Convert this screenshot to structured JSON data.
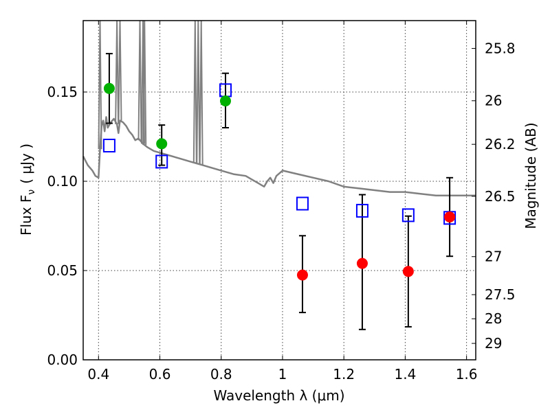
{
  "chart_data": {
    "type": "scatter",
    "xlabel": "Wavelength  λ (μm)",
    "ylabel": "Flux  F",
    "ylabel_sub": "ν",
    "ylabel_unit": "( μJy )",
    "y2label": "Magnitude (AB)",
    "xlim": [
      0.35,
      1.63
    ],
    "ylim": [
      0.0,
      0.19
    ],
    "grid": true,
    "x_ticks": [
      {
        "value": 0.4,
        "label": "0.4"
      },
      {
        "value": 0.6,
        "label": "0.6"
      },
      {
        "value": 0.8,
        "label": "0.8"
      },
      {
        "value": 1.0,
        "label": "1"
      },
      {
        "value": 1.2,
        "label": "1.2"
      },
      {
        "value": 1.4,
        "label": "1.4"
      },
      {
        "value": 1.6,
        "label": "1.6"
      }
    ],
    "y_ticks": [
      {
        "value": 0.0,
        "label": "0.00"
      },
      {
        "value": 0.05,
        "label": "0.05"
      },
      {
        "value": 0.1,
        "label": "0.10"
      },
      {
        "value": 0.15,
        "label": "0.15"
      }
    ],
    "y2_ticks": [
      {
        "label": "25.8",
        "flux": 0.1744
      },
      {
        "label": "26",
        "flux": 0.1451
      },
      {
        "label": "26.2",
        "flux": 0.1207
      },
      {
        "label": "26.5",
        "flux": 0.0916
      },
      {
        "label": "27",
        "flux": 0.0578
      },
      {
        "label": "27.5",
        "flux": 0.0365
      },
      {
        "label": "28",
        "flux": 0.023
      },
      {
        "label": "29",
        "flux": 0.0092
      }
    ],
    "colors": {
      "model": "#808080",
      "green": "#00b000",
      "red": "#ff0000",
      "model_box": "#0000ff",
      "errorbar": "#000000"
    },
    "series": [
      {
        "type": "points",
        "color_key": "green",
        "x": [
          0.435,
          0.606,
          0.814
        ],
        "y": [
          0.152,
          0.121,
          0.145
        ],
        "yerr_low": [
          0.1325,
          0.109,
          0.13
        ],
        "yerr_high": [
          0.1715,
          0.1315,
          0.1605
        ]
      },
      {
        "type": "points",
        "color_key": "red",
        "x": [
          1.065,
          1.26,
          1.41,
          1.545
        ],
        "y": [
          0.0475,
          0.054,
          0.0495,
          0.08
        ],
        "yerr_low": [
          0.0265,
          0.017,
          0.0185,
          0.058
        ],
        "yerr_high": [
          0.0695,
          0.0925,
          0.0805,
          0.102
        ]
      },
      {
        "type": "open_squares",
        "color_key": "model_box",
        "x": [
          0.435,
          0.606,
          0.814,
          1.065,
          1.26,
          1.41,
          1.545
        ],
        "y": [
          0.12,
          0.111,
          0.151,
          0.0875,
          0.0835,
          0.081,
          0.0795
        ]
      },
      {
        "type": "line",
        "color_key": "model",
        "x": [
          0.35,
          0.365,
          0.38,
          0.39,
          0.4,
          0.405,
          0.41,
          0.415,
          0.42,
          0.425,
          0.43,
          0.44,
          0.45,
          0.46,
          0.465,
          0.47,
          0.48,
          0.49,
          0.5,
          0.51,
          0.52,
          0.53,
          0.545,
          0.56,
          0.58,
          0.6,
          0.62,
          0.64,
          0.66,
          0.68,
          0.7,
          0.72,
          0.74,
          0.76,
          0.8,
          0.84,
          0.88,
          0.9,
          0.92,
          0.94,
          0.95,
          0.96,
          0.97,
          0.98,
          1.0,
          1.05,
          1.1,
          1.15,
          1.2,
          1.25,
          1.3,
          1.35,
          1.4,
          1.45,
          1.5,
          1.55,
          1.6,
          1.63
        ],
        "y": [
          0.114,
          0.109,
          0.106,
          0.103,
          0.102,
          0.118,
          0.131,
          0.134,
          0.128,
          0.136,
          0.13,
          0.133,
          0.135,
          0.132,
          0.127,
          0.134,
          0.133,
          0.131,
          0.128,
          0.126,
          0.123,
          0.124,
          0.121,
          0.119,
          0.117,
          0.116,
          0.115,
          0.114,
          0.113,
          0.112,
          0.111,
          0.11,
          0.109,
          0.108,
          0.106,
          0.104,
          0.103,
          0.101,
          0.099,
          0.097,
          0.1,
          0.102,
          0.099,
          0.103,
          0.106,
          0.104,
          0.102,
          0.1,
          0.097,
          0.096,
          0.095,
          0.094,
          0.094,
          0.093,
          0.092,
          0.092,
          0.092,
          0.092
        ]
      }
    ],
    "emission_spikes": [
      {
        "x": 0.405,
        "peak": 0.19
      },
      {
        "x": 0.46,
        "peak": 0.19
      },
      {
        "x": 0.47,
        "peak": 0.19
      },
      {
        "x": 0.535,
        "peak": 0.19
      },
      {
        "x": 0.545,
        "peak": 0.19
      },
      {
        "x": 0.55,
        "peak": 0.19
      },
      {
        "x": 0.715,
        "peak": 0.19
      },
      {
        "x": 0.725,
        "peak": 0.19
      },
      {
        "x": 0.735,
        "peak": 0.19
      }
    ]
  }
}
